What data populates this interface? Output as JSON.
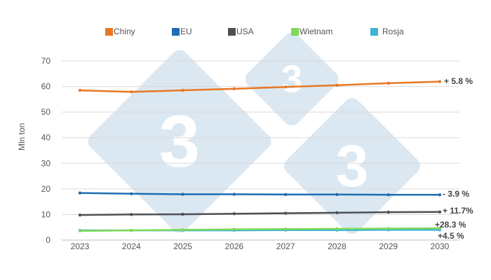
{
  "chart_data": {
    "type": "line",
    "title": "",
    "xlabel": "",
    "ylabel": "Mln ton",
    "ylim": [
      0,
      70
    ],
    "yticks": [
      0,
      10,
      20,
      30,
      40,
      50,
      60,
      70
    ],
    "grid": true,
    "legend_position": "top",
    "x": [
      "2023",
      "2024",
      "2025",
      "2026",
      "2027",
      "2028",
      "2029",
      "2030"
    ],
    "series": [
      {
        "name": "Chiny",
        "color": "#e87722",
        "values": [
          58.5,
          57.9,
          58.5,
          59.1,
          59.8,
          60.5,
          61.3,
          61.9
        ],
        "end_label": "+ 5.8 %"
      },
      {
        "name": "EU",
        "color": "#1f6db3",
        "values": [
          18.4,
          18.1,
          17.9,
          17.9,
          17.8,
          17.8,
          17.7,
          17.7
        ],
        "end_label": "- 3.9 %"
      },
      {
        "name": "USA",
        "color": "#4d5054",
        "values": [
          9.8,
          10.0,
          10.1,
          10.3,
          10.5,
          10.7,
          10.9,
          11.0
        ],
        "end_label": "+ 11.7%"
      },
      {
        "name": "Wietnam",
        "color": "#7ed957",
        "values": [
          3.6,
          3.8,
          4.0,
          4.2,
          4.3,
          4.4,
          4.5,
          4.6
        ],
        "end_label": "+28.3 %"
      },
      {
        "name": "Rosja",
        "color": "#3bb4d8",
        "values": [
          3.8,
          3.8,
          3.8,
          3.8,
          3.9,
          3.9,
          4.0,
          4.0
        ],
        "end_label": "+4.5 %"
      }
    ],
    "annotations": [
      "+ 5.8 %",
      "- 3.9 %",
      "+ 11.7%",
      "+28.3 %",
      "+4.5 %"
    ]
  },
  "legend": [
    {
      "label": "Chiny",
      "color": "#e87722"
    },
    {
      "label": "EU",
      "color": "#1f6db3"
    },
    {
      "label": "USA",
      "color": "#4d5054"
    },
    {
      "label": "Wietnam",
      "color": "#7ed957"
    },
    {
      "label": "Rosja",
      "color": "#3bb4d8"
    }
  ],
  "watermark": {
    "glyph": "3",
    "color": "#dbe8f2"
  }
}
